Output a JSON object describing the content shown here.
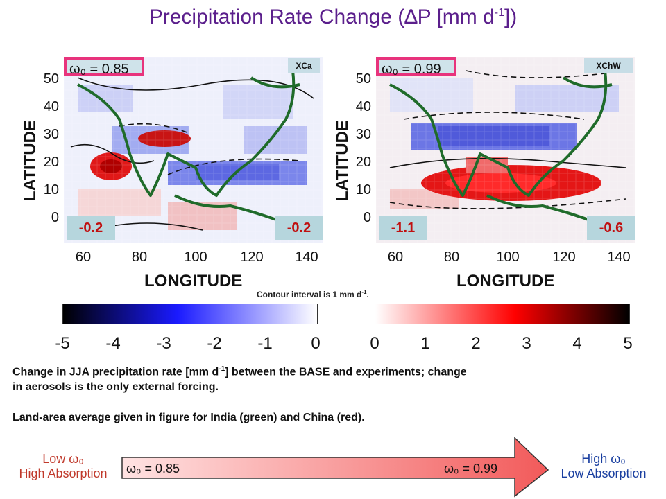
{
  "title": {
    "prefix": "Precipitation Rate Change (",
    "symbol": "∆",
    "middle": "P [mm d",
    "exponent": "-1",
    "suffix": "])"
  },
  "chart_data": [
    {
      "type": "heatmap",
      "tag": "XCa",
      "omega_label": "ω₀ = 0.85",
      "xlabel": "LONGITUDE",
      "ylabel": "LATITUDE",
      "xticks": [
        "60",
        "80",
        "100",
        "120",
        "140"
      ],
      "yticks": [
        "50",
        "40",
        "30",
        "20",
        "10",
        "0"
      ],
      "xlim": [
        55,
        145
      ],
      "ylim": [
        -8,
        56
      ],
      "india_average": "-0.2",
      "china_average": "-0.2"
    },
    {
      "type": "heatmap",
      "tag": "XChW",
      "omega_label": "ω₀ = 0.99",
      "xlabel": "LONGITUDE",
      "ylabel": "LATITUDE",
      "xticks": [
        "60",
        "80",
        "100",
        "120",
        "140"
      ],
      "yticks": [
        "50",
        "40",
        "30",
        "20",
        "10",
        "0"
      ],
      "xlim": [
        55,
        145
      ],
      "ylim": [
        -8,
        56
      ],
      "india_average": "-1.1",
      "china_average": "-0.6"
    }
  ],
  "contour_note": {
    "text": "Contour  interval  is 1 mm d",
    "exponent": "-1",
    "end": "."
  },
  "colorbar": {
    "negative_ticks": [
      "-5",
      "-4",
      "-3",
      "-2",
      "-1",
      "0"
    ],
    "positive_ticks": [
      "0",
      "1",
      "2",
      "3",
      "4",
      "5"
    ],
    "colors": {
      "neg_min": "#000000",
      "neg_mid": "#1a1aff",
      "neg_zero": "#ffffff",
      "pos_zero": "#ffffff",
      "pos_mid": "#ff0000",
      "pos_max": "#000000"
    }
  },
  "caption": {
    "line1_a": "Change in JJA precipitation rate [mm d",
    "line1_exp": "-1",
    "line1_b": "] between the BASE and experiments; change",
    "line2": "in aerosols is the only external forcing.",
    "line3": "Land-area average given in figure for India (green) and China (red)."
  },
  "arrow": {
    "left_title": "Low ω₀",
    "left_sub": "High Absorption",
    "right_title": "High ω₀",
    "right_sub": "Low Absorption",
    "start_label": "ω₀ = 0.85",
    "end_label": "ω₀ = 0.99",
    "colors": {
      "left_text": "#c0392b",
      "right_text": "#1a3fa0"
    }
  }
}
